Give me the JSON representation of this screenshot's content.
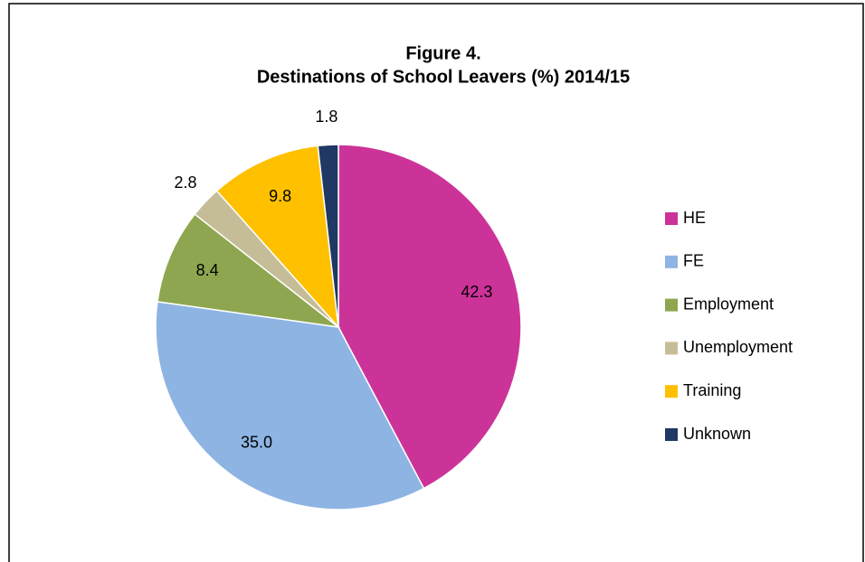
{
  "chart_data": {
    "type": "pie",
    "title": "Figure 4.",
    "subtitle": "Destinations of School Leavers (%) 2014/15",
    "categories": [
      "HE",
      "FE",
      "Employment",
      "Unemployment",
      "Training",
      "Unknown"
    ],
    "values": [
      42.3,
      35.0,
      8.4,
      2.8,
      9.8,
      1.8
    ],
    "value_labels": [
      "42.3",
      "35.0",
      "8.4",
      "2.8",
      "9.8",
      "1.8"
    ],
    "colors": [
      "#cc3399",
      "#8eb4e3",
      "#8ea64f",
      "#c4bd97",
      "#ffc000",
      "#1f3864"
    ],
    "legend": "right"
  }
}
